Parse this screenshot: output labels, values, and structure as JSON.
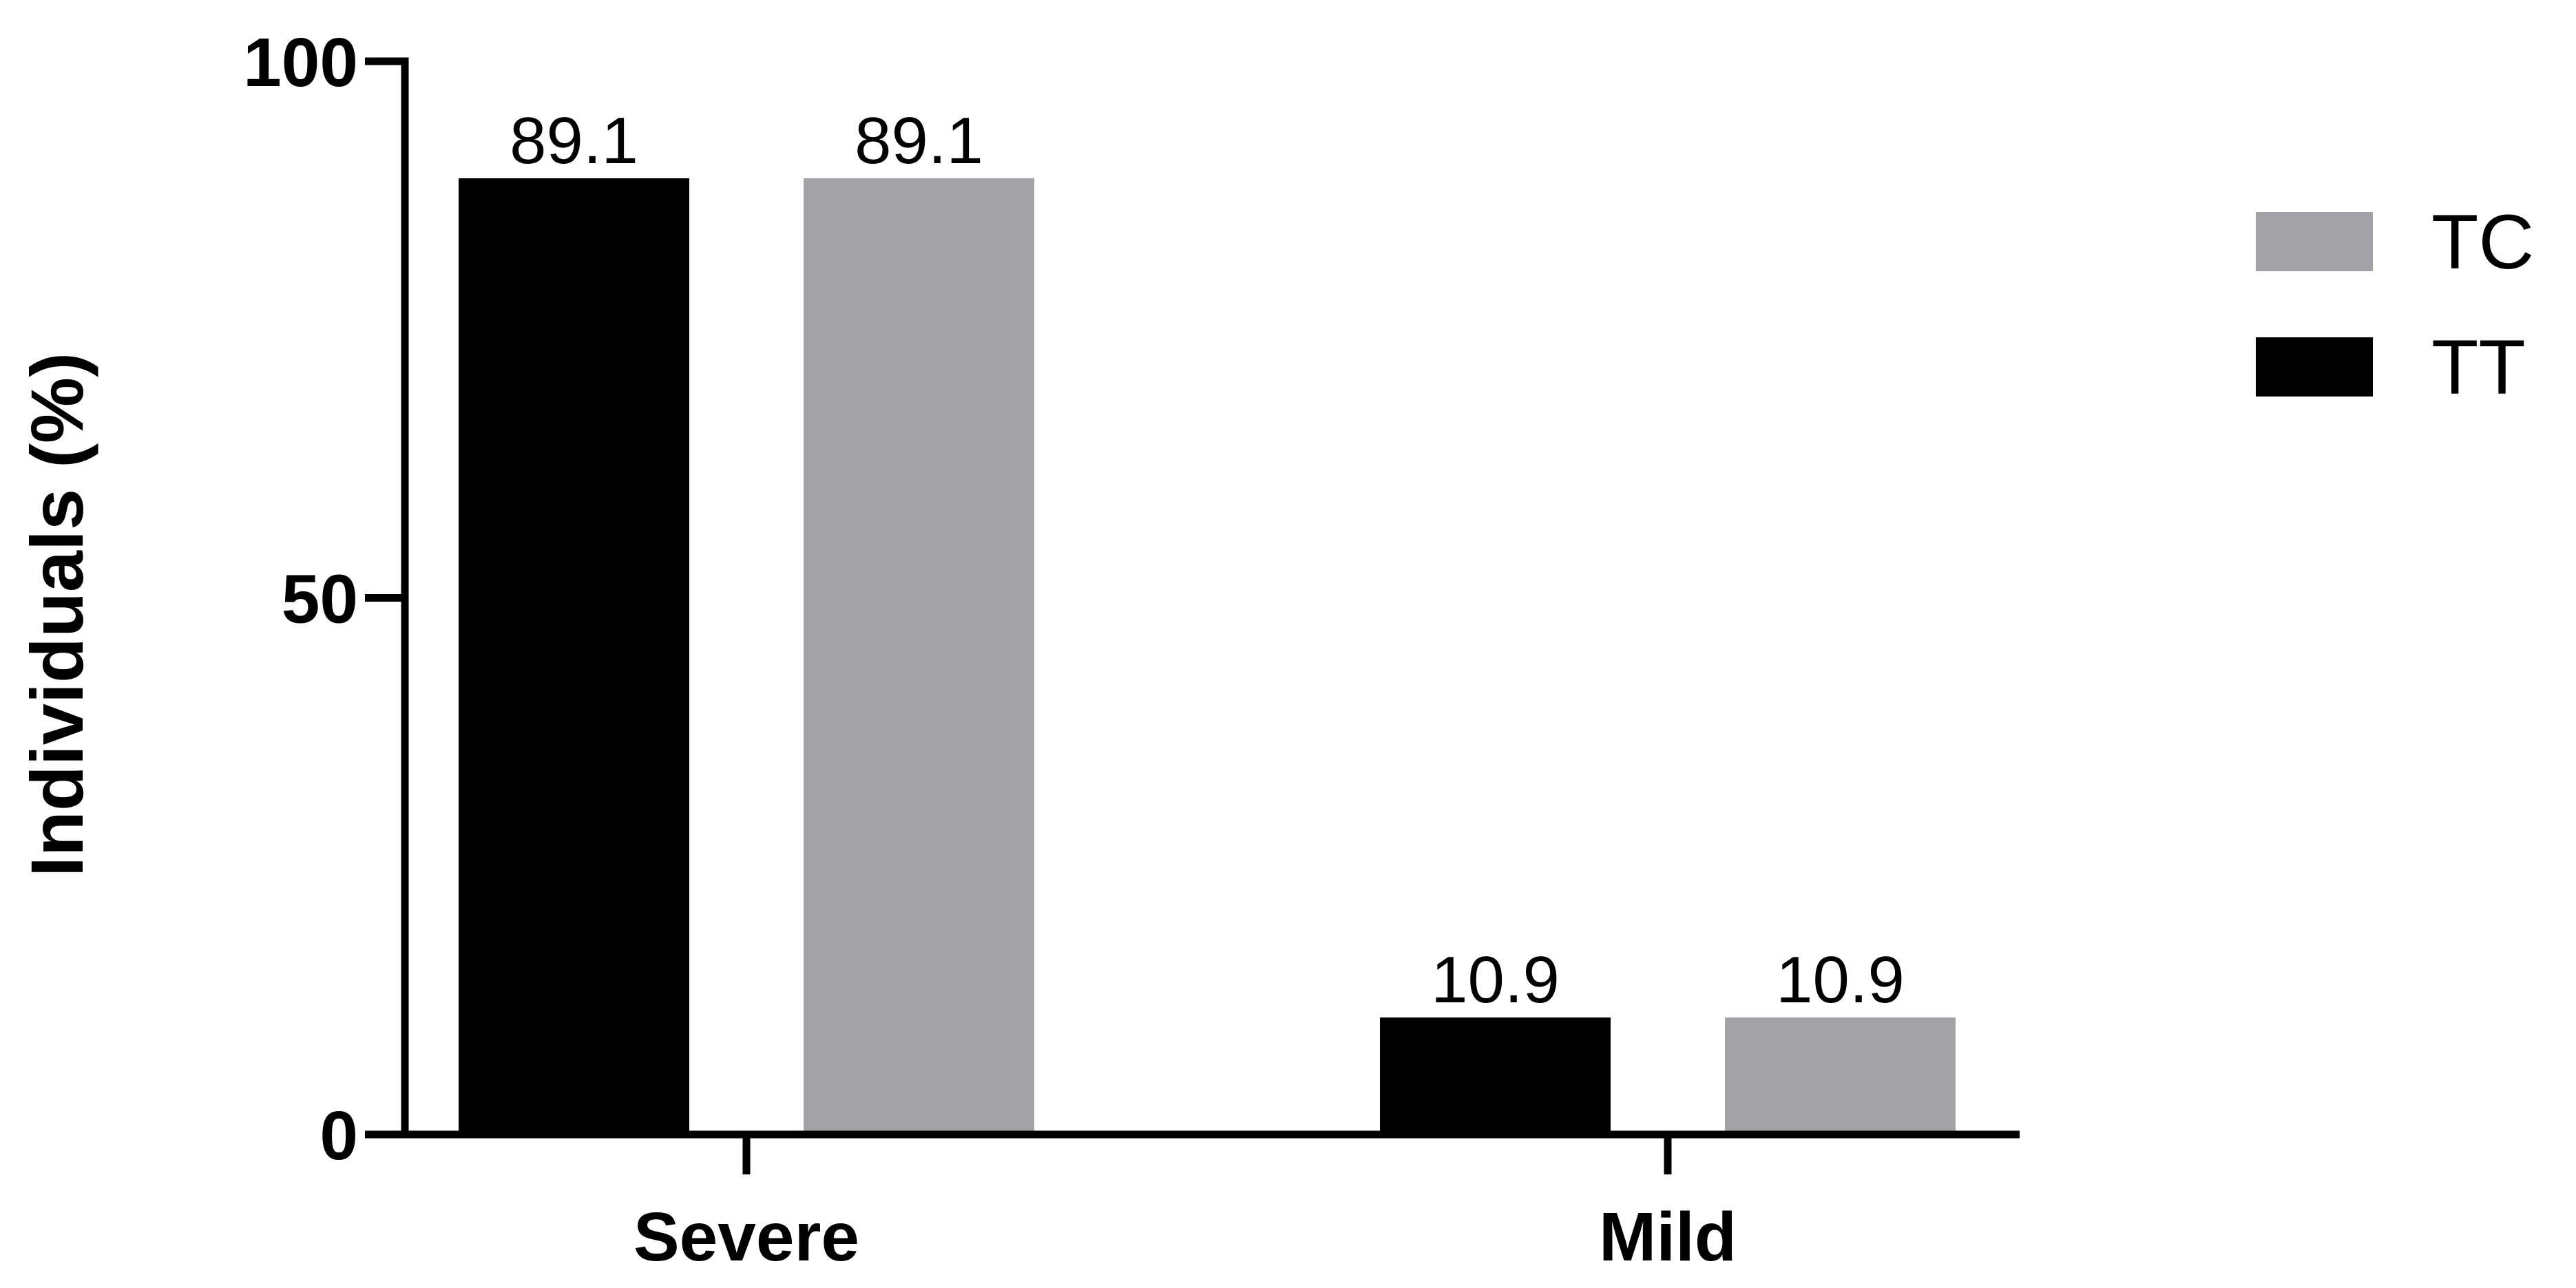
{
  "chart_data": {
    "type": "bar",
    "title": "",
    "xlabel": "",
    "ylabel": "Individuals (%)",
    "ylim": [
      0,
      100
    ],
    "yticks": [
      0,
      50,
      100
    ],
    "categories": [
      "Severe",
      "Mild"
    ],
    "series": [
      {
        "name": "TT",
        "color": "#000000",
        "values": [
          89.1,
          10.9
        ]
      },
      {
        "name": "TC",
        "color": "#a3a2a7",
        "values": [
          89.1,
          10.9
        ]
      }
    ],
    "data_labels": [
      [
        "89.1",
        "10.9"
      ],
      [
        "89.1",
        "10.9"
      ]
    ],
    "legend": {
      "position": "right",
      "order": [
        "TC",
        "TT"
      ]
    },
    "grid": false
  }
}
